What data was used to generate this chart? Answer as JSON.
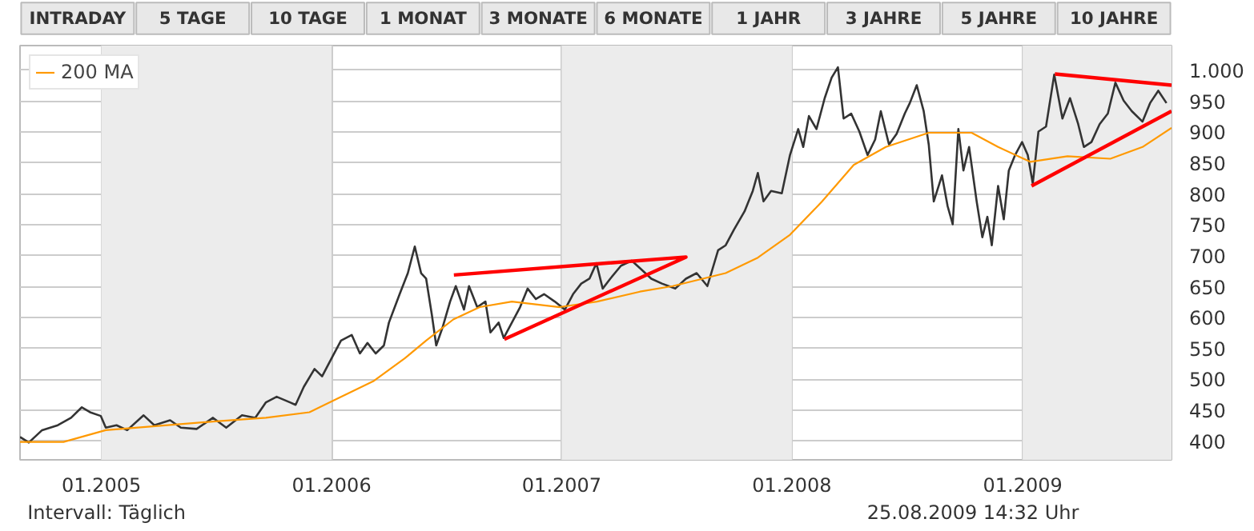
{
  "chart_data": {
    "type": "line",
    "annotations": [
      "INTRADAY",
      "5 TAGE",
      "10 TAGE",
      "1 MONAT",
      "3 MONATE",
      "6 MONATE",
      "1 JAHR",
      "3 JAHRE",
      "5 JAHRE",
      "10 JAHRE",
      "Intervall: Täglich",
      "25.08.2009 14:32 Uhr"
    ],
    "xlim": [
      "2004-08-25",
      "2009-08-25"
    ],
    "xticks": [
      {
        "value": "2005-01-01",
        "label": "01.2005"
      },
      {
        "value": "2006-01-01",
        "label": "01.2006"
      },
      {
        "value": "2007-01-01",
        "label": "01.2007"
      },
      {
        "value": "2008-01-01",
        "label": "01.2008"
      },
      {
        "value": "2009-01-01",
        "label": "01.2009"
      }
    ],
    "ylim": [
      370,
      1040
    ],
    "yticks": [
      400,
      450,
      500,
      550,
      600,
      650,
      700,
      750,
      800,
      850,
      900,
      950,
      {
        "value": 1000,
        "label": "1.000"
      }
    ],
    "grid": true,
    "legend": "top left",
    "marker": "none",
    "line_style": "solid",
    "bands": [
      {
        "axis": "x",
        "from": "2005-01-01",
        "to": "2006-01-01",
        "color": "#ececec"
      },
      {
        "axis": "x",
        "from": "2007-01-01",
        "to": "2008-01-01",
        "color": "#ececec"
      },
      {
        "axis": "x",
        "from": "2009-01-01",
        "to": "2009-08-25",
        "color": "#ececec"
      }
    ],
    "series": [
      {
        "color": "#333333",
        "x": [
          "2004-08-25",
          "2004-09-08",
          "2004-09-29",
          "2004-10-24",
          "2004-11-14",
          "2004-12-01",
          "2004-12-14",
          "2004-12-31",
          "2005-01-08",
          "2005-01-25",
          "2005-02-11",
          "2005-03-09",
          "2005-03-26",
          "2005-04-20",
          "2005-05-07",
          "2005-06-01",
          "2005-06-27",
          "2005-07-18",
          "2005-08-12",
          "2005-09-02",
          "2005-09-19",
          "2005-10-06",
          "2005-10-27",
          "2005-11-05",
          "2005-11-18",
          "2005-12-05",
          "2005-12-17",
          "2006-01-03",
          "2006-01-16",
          "2006-02-02",
          "2006-02-15",
          "2006-02-27",
          "2006-03-12",
          "2006-03-25",
          "2006-04-02",
          "2006-04-19",
          "2006-05-02",
          "2006-05-13",
          "2006-05-23",
          "2006-05-31",
          "2006-06-09",
          "2006-06-16",
          "2006-06-26",
          "2006-07-08",
          "2006-07-17",
          "2006-07-30",
          "2006-08-07",
          "2006-08-20",
          "2006-09-02",
          "2006-09-10",
          "2006-09-23",
          "2006-10-01",
          "2006-10-14",
          "2006-10-27",
          "2006-11-08",
          "2006-11-21",
          "2006-12-04",
          "2006-12-21",
          "2007-01-06",
          "2007-01-19",
          "2007-02-01",
          "2007-02-14",
          "2007-02-25",
          "2007-03-07",
          "2007-03-19",
          "2007-04-05",
          "2007-04-22",
          "2007-05-05",
          "2007-05-23",
          "2007-06-09",
          "2007-06-30",
          "2007-07-17",
          "2007-08-03",
          "2007-08-20",
          "2007-09-06",
          "2007-09-18",
          "2007-10-01",
          "2007-10-18",
          "2007-10-31",
          "2007-11-08",
          "2007-11-17",
          "2007-11-29",
          "2007-12-16",
          "2007-12-29",
          "2008-01-11",
          "2008-01-19",
          "2008-01-28",
          "2008-02-09",
          "2008-02-22",
          "2008-03-04",
          "2008-03-14",
          "2008-03-23",
          "2008-04-04",
          "2008-04-17",
          "2008-04-30",
          "2008-05-12",
          "2008-05-21",
          "2008-06-03",
          "2008-06-15",
          "2008-06-28",
          "2008-07-06",
          "2008-07-17",
          "2008-07-28",
          "2008-08-05",
          "2008-08-13",
          "2008-08-26",
          "2008-09-04",
          "2008-09-12",
          "2008-09-21",
          "2008-09-29",
          "2008-10-08",
          "2008-10-20",
          "2008-10-29",
          "2008-11-06",
          "2008-11-13",
          "2008-11-23",
          "2008-12-02",
          "2008-12-10",
          "2008-12-20",
          "2008-12-31",
          "2009-01-09",
          "2009-01-17",
          "2009-01-26",
          "2009-02-07",
          "2009-02-20",
          "2009-03-05",
          "2009-03-17",
          "2009-03-30",
          "2009-04-08",
          "2009-04-20",
          "2009-05-03",
          "2009-05-16",
          "2009-05-28",
          "2009-06-10",
          "2009-06-23",
          "2009-07-10",
          "2009-07-22",
          "2009-08-04",
          "2009-08-17"
        ],
        "values": [
          407,
          398,
          418,
          426,
          438,
          455,
          447,
          441,
          422,
          426,
          418,
          442,
          426,
          434,
          422,
          420,
          438,
          422,
          442,
          438,
          463,
          472,
          463,
          459,
          488,
          517,
          505,
          538,
          563,
          572,
          542,
          559,
          542,
          555,
          592,
          638,
          672,
          715,
          672,
          663,
          605,
          555,
          584,
          626,
          651,
          613,
          651,
          617,
          626,
          576,
          592,
          567,
          592,
          617,
          647,
          630,
          638,
          626,
          613,
          638,
          655,
          663,
          688,
          647,
          663,
          684,
          692,
          680,
          663,
          655,
          647,
          663,
          672,
          651,
          709,
          717,
          742,
          772,
          805,
          834,
          788,
          805,
          801,
          863,
          905,
          876,
          926,
          905,
          955,
          988,
          1005,
          922,
          930,
          901,
          863,
          888,
          934,
          880,
          897,
          930,
          947,
          976,
          934,
          880,
          788,
          830,
          780,
          751,
          905,
          838,
          876,
          788,
          730,
          763,
          717,
          813,
          759,
          838,
          863,
          884,
          863,
          817,
          901,
          909,
          993,
          922,
          955,
          913,
          876,
          884,
          913,
          930,
          980,
          951,
          934,
          917,
          947,
          967,
          947
        ]
      },
      {
        "name": "200 MA",
        "color": "#ff9900",
        "x": [
          "2004-08-25",
          "2004-11-02",
          "2005-01-08",
          "2005-06-27",
          "2005-09-19",
          "2005-11-27",
          "2006-01-16",
          "2006-03-08",
          "2006-04-27",
          "2006-05-31",
          "2006-07-13",
          "2006-08-24",
          "2006-10-14",
          "2006-12-29",
          "2007-02-26",
          "2007-05-05",
          "2007-06-26",
          "2007-09-18",
          "2007-11-08",
          "2007-12-29",
          "2008-02-18",
          "2008-04-08",
          "2008-05-29",
          "2008-08-05",
          "2008-10-12",
          "2008-11-23",
          "2009-01-13",
          "2009-03-13",
          "2009-05-20",
          "2009-07-10",
          "2009-08-25"
        ],
        "values": [
          399,
          399,
          418,
          432,
          438,
          447,
          472,
          497,
          534,
          563,
          597,
          617,
          626,
          617,
          626,
          642,
          651,
          672,
          697,
          734,
          788,
          847,
          876,
          899,
          899,
          876,
          852,
          861,
          857,
          876,
          907
        ]
      },
      {
        "color": "#ff0000",
        "x": [
          "2006-07-14",
          "2007-07-17",
          "2006-10-02"
        ],
        "values": [
          669,
          698,
          565
        ]
      },
      {
        "color": "#ff0000",
        "x": [
          "2009-02-21",
          "2009-08-25"
        ],
        "values": [
          994,
          976
        ]
      },
      {
        "color": "#ff0000",
        "x": [
          "2009-01-15",
          "2009-08-25"
        ],
        "values": [
          813,
          934
        ]
      }
    ]
  }
}
